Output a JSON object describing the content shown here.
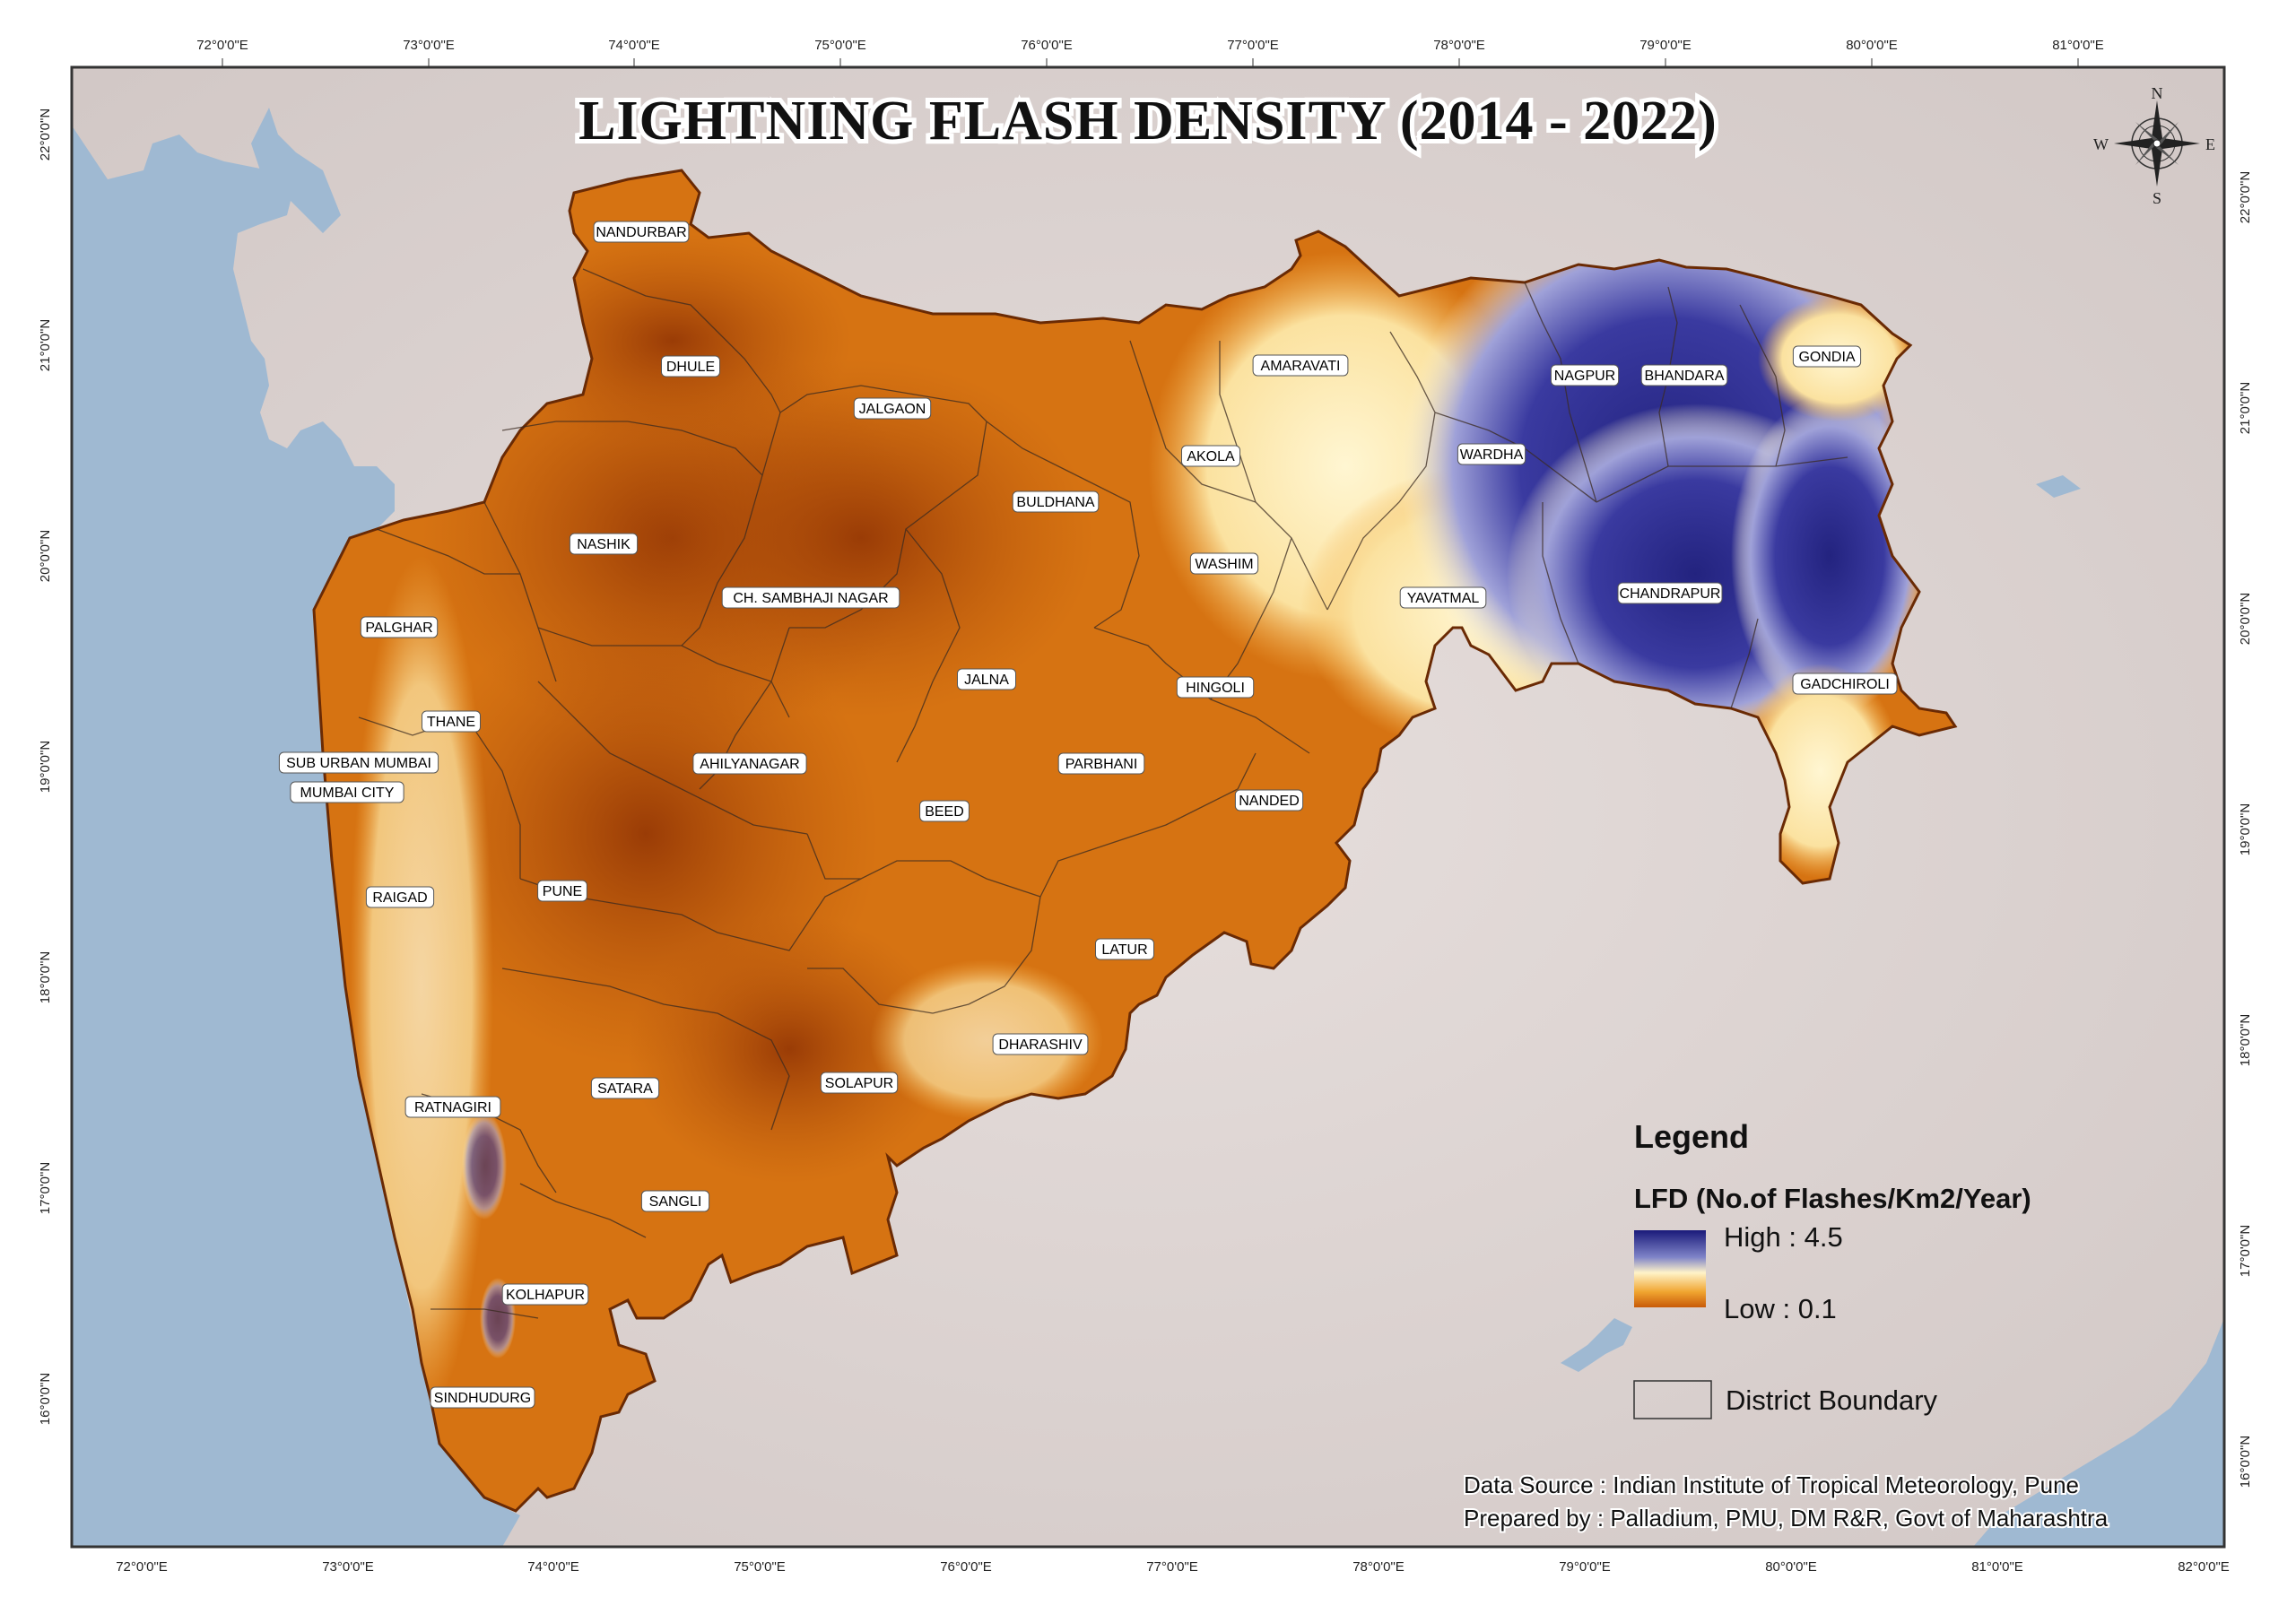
{
  "title": "LIGHTNING FLASH DENSITY (2014 - 2022)",
  "axes": {
    "longitudes": [
      "72°0'0\"E",
      "73°0'0\"E",
      "74°0'0\"E",
      "75°0'0\"E",
      "76°0'0\"E",
      "77°0'0\"E",
      "78°0'0\"E",
      "79°0'0\"E",
      "80°0'0\"E",
      "81°0'0\"E",
      "82°0'0\"E"
    ],
    "latitudes_left": [
      "22°0'0\"N",
      "21°0'0\"N",
      "20°0'0\"N",
      "19°0'0\"N",
      "18°0'0\"N",
      "17°0'0\"N",
      "16°0'0\"N"
    ],
    "latitudes_right": [
      "22°0'0\"N",
      "21°0'0\"N",
      "20°0'0\"N",
      "19°0'0\"N",
      "18°0'0\"N",
      "17°0'0\"N",
      "16°0'0\"N"
    ]
  },
  "districts": [
    {
      "id": "nandurbar",
      "label": "NANDURBAR"
    },
    {
      "id": "dhule",
      "label": "DHULE"
    },
    {
      "id": "jalgaon",
      "label": "JALGAON"
    },
    {
      "id": "amaravati",
      "label": "AMARAVATI"
    },
    {
      "id": "nagpur",
      "label": "NAGPUR"
    },
    {
      "id": "bhandara",
      "label": "BHANDARA"
    },
    {
      "id": "gondia",
      "label": "GONDIA"
    },
    {
      "id": "akola",
      "label": "AKOLA"
    },
    {
      "id": "wardha",
      "label": "WARDHA"
    },
    {
      "id": "buldhana",
      "label": "BULDHANA"
    },
    {
      "id": "nashik",
      "label": "NASHIK"
    },
    {
      "id": "washim",
      "label": "WASHIM"
    },
    {
      "id": "sambhajinagar",
      "label": "CH. SAMBHAJI NAGAR"
    },
    {
      "id": "yavatmal",
      "label": "YAVATMAL"
    },
    {
      "id": "chandrapur",
      "label": "CHANDRAPUR"
    },
    {
      "id": "palghar",
      "label": "PALGHAR"
    },
    {
      "id": "jalna",
      "label": "JALNA"
    },
    {
      "id": "hingoli",
      "label": "HINGOLI"
    },
    {
      "id": "gadchiroli",
      "label": "GADCHIROLI"
    },
    {
      "id": "thane",
      "label": "THANE"
    },
    {
      "id": "suburban",
      "label": "SUB URBAN MUMBAI"
    },
    {
      "id": "ahilyanagar",
      "label": "AHILYANAGAR"
    },
    {
      "id": "parbhani",
      "label": "PARBHANI"
    },
    {
      "id": "mumbaicity",
      "label": "MUMBAI CITY"
    },
    {
      "id": "nanded",
      "label": "NANDED"
    },
    {
      "id": "beed",
      "label": "BEED"
    },
    {
      "id": "raigad",
      "label": "RAIGAD"
    },
    {
      "id": "pune",
      "label": "PUNE"
    },
    {
      "id": "latur",
      "label": "LATUR"
    },
    {
      "id": "dharashiv",
      "label": "DHARASHIV"
    },
    {
      "id": "satara",
      "label": "SATARA"
    },
    {
      "id": "solapur",
      "label": "SOLAPUR"
    },
    {
      "id": "ratnagiri",
      "label": "RATNAGIRI"
    },
    {
      "id": "sangli",
      "label": "SANGLI"
    },
    {
      "id": "kolhapur",
      "label": "KOLHAPUR"
    },
    {
      "id": "sindhudurg",
      "label": "SINDHUDURG"
    }
  ],
  "compass": {
    "n": "N",
    "s": "S",
    "e": "E",
    "w": "W"
  },
  "legend": {
    "title": "Legend",
    "subtitle": "LFD (No.of Flashes/Km2/Year)",
    "high_label": "High : 4.5",
    "low_label": "Low : 0.1",
    "high_value": 4.5,
    "low_value": 0.1,
    "boundary_label": "District Boundary",
    "colors": {
      "high": "#1f1f8f",
      "mid": "#fff2c4",
      "low": "#e07a10",
      "darkest": "#9a3a05"
    }
  },
  "source": {
    "line1": "Data Source : Indian Institute of Tropical Meteorology, Pune",
    "line2": "Prepared by : Palladium, PMU, DM R&R, Govt of Maharashtra"
  },
  "colors": {
    "sea": "#9fb9d2",
    "land": "#ddd5d3",
    "frame": "#333333"
  }
}
